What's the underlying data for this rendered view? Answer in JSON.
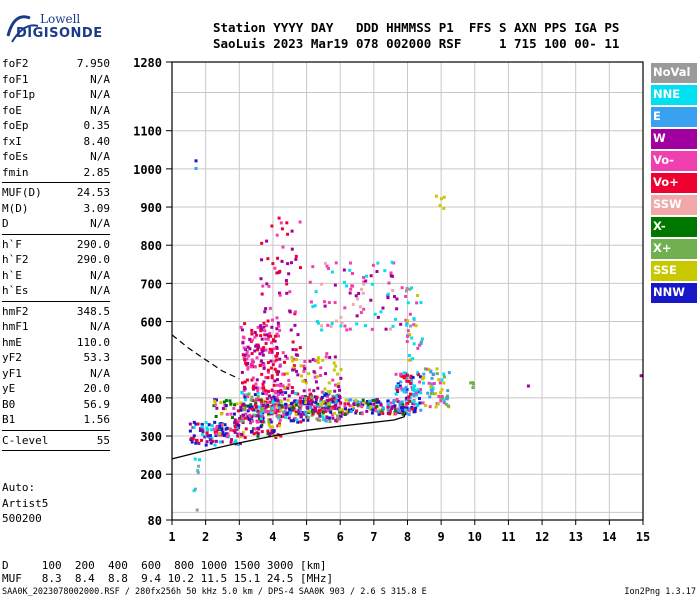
{
  "logo": {
    "line1": "Lowell",
    "line2": "DIGISONDE"
  },
  "header": {
    "line1": "Station YYYY DAY   DDD HHMMSS P1  FFS S AXN PPS IGA PS",
    "line2": "SaoLuis 2023 Mar19 078 002000 RSF     1 715 100 00- 11"
  },
  "params": [
    {
      "name": "foF2",
      "value": "7.950"
    },
    {
      "name": "foF1",
      "value": "N/A"
    },
    {
      "name": "foF1p",
      "value": "N/A"
    },
    {
      "name": "foE",
      "value": "N/A"
    },
    {
      "name": "foEp",
      "value": "0.35"
    },
    {
      "name": "fxI",
      "value": "8.40"
    },
    {
      "name": "foEs",
      "value": "N/A"
    },
    {
      "name": "fmin",
      "value": "2.85"
    },
    {
      "sep": true
    },
    {
      "name": "MUF(D)",
      "value": "24.53"
    },
    {
      "name": "M(D)",
      "value": "3.09"
    },
    {
      "name": "D",
      "value": "N/A"
    },
    {
      "sep": true
    },
    {
      "name": "h`F",
      "value": "290.0"
    },
    {
      "name": "h`F2",
      "value": "290.0"
    },
    {
      "name": "h`E",
      "value": "N/A"
    },
    {
      "name": "h`Es",
      "value": "N/A"
    },
    {
      "sep": true
    },
    {
      "name": "hmF2",
      "value": "348.5"
    },
    {
      "name": "hmF1",
      "value": "N/A"
    },
    {
      "name": "hmE",
      "value": "110.0"
    },
    {
      "name": "yF2",
      "value": "53.3"
    },
    {
      "name": "yF1",
      "value": "N/A"
    },
    {
      "name": "yE",
      "value": "20.0"
    },
    {
      "name": "B0",
      "value": "56.9"
    },
    {
      "name": "B1",
      "value": "1.56"
    },
    {
      "sep": true
    },
    {
      "name": "C-level",
      "value": "55"
    },
    {
      "sep": true
    }
  ],
  "auto": [
    "Auto:",
    "Artist5",
    "500200"
  ],
  "legend": [
    {
      "label": "NoVal",
      "color": "#9a9a9a"
    },
    {
      "label": "NNE",
      "color": "#00e0f0"
    },
    {
      "label": "E",
      "color": "#3aa0f0"
    },
    {
      "label": "W",
      "color": "#a000a0"
    },
    {
      "label": "Vo-",
      "color": "#f040b0"
    },
    {
      "label": "Vo+",
      "color": "#ee0030"
    },
    {
      "label": "SSW",
      "color": "#f0a8a8"
    },
    {
      "label": "X-",
      "color": "#007800"
    },
    {
      "label": "X+",
      "color": "#70b050"
    },
    {
      "label": "SSE",
      "color": "#c8c800"
    },
    {
      "label": "NNW",
      "color": "#1818c8"
    }
  ],
  "bottom": {
    "line1": "D     100  200  400  600  800 1000 1500 3000 [km]",
    "line2": "MUF   8.3  8.4  8.8  9.4 10.2 11.5 15.1 24.5 [MHz]"
  },
  "footer": "SAA0K_2023078002000.RSF / 280fx256h 50 kHz 5.0 km / DPS-4 SAA0K 903 / 2.6 S 315.8 E",
  "version": "Ion2Png 1.3.17",
  "chart_data": {
    "type": "scatter",
    "xlim": [
      1,
      15
    ],
    "ylim": [
      80,
      1280
    ],
    "x_ticks": [
      1,
      2,
      3,
      4,
      5,
      6,
      7,
      8,
      9,
      10,
      11,
      12,
      13,
      14,
      15
    ],
    "y_ticks": [
      80,
      200,
      300,
      400,
      500,
      600,
      700,
      800,
      900,
      1000,
      1100,
      1280
    ],
    "grid": true,
    "profile_solid": [
      [
        1,
        240
      ],
      [
        2,
        262
      ],
      [
        3,
        282
      ],
      [
        4,
        300
      ],
      [
        5,
        315
      ],
      [
        6,
        326
      ],
      [
        7,
        336
      ],
      [
        7.6,
        342
      ],
      [
        7.9,
        350
      ],
      [
        7.95,
        361
      ]
    ],
    "profile_dashed": [
      [
        1,
        565
      ],
      [
        1.5,
        530
      ],
      [
        2,
        500
      ],
      [
        2.5,
        470
      ],
      [
        3,
        450
      ]
    ],
    "clusters": [
      {
        "x": [
          1.5,
          3
        ],
        "y": [
          280,
          340
        ],
        "colors": [
          "#1818c8",
          "#a000a0",
          "#ee0030",
          "#00e0f0"
        ],
        "n": 90
      },
      {
        "x": [
          2.2,
          4.2
        ],
        "y": [
          300,
          400
        ],
        "colors": [
          "#ee0030",
          "#a000a0",
          "#1818c8",
          "#f040b0",
          "#c8c800",
          "#007800"
        ],
        "n": 180
      },
      {
        "x": [
          3,
          6
        ],
        "y": [
          340,
          420
        ],
        "colors": [
          "#ee0030",
          "#a000a0",
          "#1818c8",
          "#f040b0",
          "#70b050",
          "#00e0f0"
        ],
        "n": 280
      },
      {
        "x": [
          4,
          8.2
        ],
        "y": [
          360,
          400
        ],
        "colors": [
          "#ee0030",
          "#a000a0",
          "#1818c8",
          "#f040b0",
          "#c8c800",
          "#007800",
          "#3aa0f0"
        ],
        "n": 240
      },
      {
        "x": [
          3,
          4.2
        ],
        "y": [
          420,
          600
        ],
        "colors": [
          "#a000a0",
          "#f040b0",
          "#ee0030"
        ],
        "n": 150
      },
      {
        "x": [
          3.6,
          4.8
        ],
        "y": [
          400,
          880
        ],
        "colors": [
          "#a000a0",
          "#f040b0",
          "#ee0030"
        ],
        "n": 90
      },
      {
        "x": [
          4.2,
          6
        ],
        "y": [
          420,
          520
        ],
        "colors": [
          "#a000a0",
          "#f040b0",
          "#c8c800"
        ],
        "n": 70
      },
      {
        "x": [
          5,
          7.8
        ],
        "y": [
          580,
          760
        ],
        "colors": [
          "#f0a8a8",
          "#f040b0",
          "#a000a0",
          "#00e0f0"
        ],
        "n": 90
      },
      {
        "x": [
          7.6,
          8.4
        ],
        "y": [
          360,
          470
        ],
        "colors": [
          "#ee0030",
          "#3aa0f0",
          "#f040b0",
          "#00e0f0",
          "#1818c8"
        ],
        "n": 100
      },
      {
        "x": [
          8.4,
          9.2
        ],
        "y": [
          380,
          480
        ],
        "colors": [
          "#00e0f0",
          "#3aa0f0",
          "#f040b0",
          "#c8c800",
          "#70b050"
        ],
        "n": 60
      },
      {
        "x": [
          7.9,
          8.4
        ],
        "y": [
          500,
          700
        ],
        "colors": [
          "#00e0f0",
          "#3aa0f0",
          "#f040b0",
          "#9a9a9a",
          "#c8c800"
        ],
        "n": 35
      },
      {
        "x": [
          8.8,
          9.1
        ],
        "y": [
          900,
          935
        ],
        "colors": [
          "#c8c800"
        ],
        "n": 5
      },
      {
        "x": [
          1.6,
          1.8
        ],
        "y": [
          100,
          260
        ],
        "colors": [
          "#3aa0f0",
          "#00e0f0",
          "#9a9a9a"
        ],
        "n": 8
      },
      {
        "x": [
          9.8,
          10
        ],
        "y": [
          430,
          445
        ],
        "colors": [
          "#3aa0f0",
          "#70b050"
        ],
        "n": 4
      }
    ],
    "points": [
      {
        "x": 1.67,
        "y": 1025,
        "color": "#1818c8"
      },
      {
        "x": 1.67,
        "y": 1005,
        "color": "#3aa0f0"
      },
      {
        "x": 11.55,
        "y": 435,
        "color": "#a000a0"
      },
      {
        "x": 14.9,
        "y": 462,
        "color": "#a000a0"
      }
    ]
  }
}
